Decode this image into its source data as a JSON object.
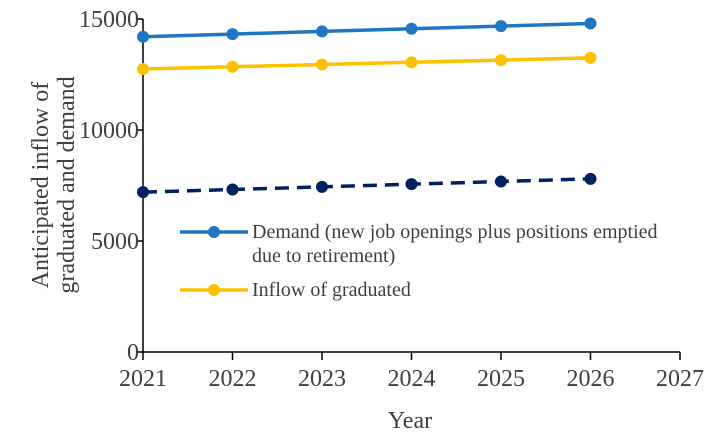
{
  "chart_data": {
    "type": "line",
    "x": [
      2021,
      2022,
      2023,
      2024,
      2025,
      2026
    ],
    "series": [
      {
        "name": "Demand (new job openings plus positions emptied due to retirement)",
        "color": "#1f77c4",
        "values": [
          14200,
          14320,
          14440,
          14560,
          14680,
          14800
        ]
      },
      {
        "name": "Inflow of graduated",
        "color": "#ffc000",
        "values": [
          12750,
          12850,
          12950,
          13050,
          13150,
          13250
        ]
      },
      {
        "color": "#002060",
        "dashed": true,
        "values": [
          7200,
          7320,
          7440,
          7560,
          7680,
          7800
        ]
      }
    ],
    "xlabel": "Year",
    "ylabel": [
      "Anticipated inflow of",
      "graduated and demand"
    ],
    "xlim": [
      2021,
      2027
    ],
    "xticks": [
      2021,
      2022,
      2023,
      2024,
      2025,
      2026,
      2027
    ],
    "ylim": [
      0,
      15000
    ],
    "yticks": [
      0,
      5000,
      10000,
      15000
    ]
  }
}
